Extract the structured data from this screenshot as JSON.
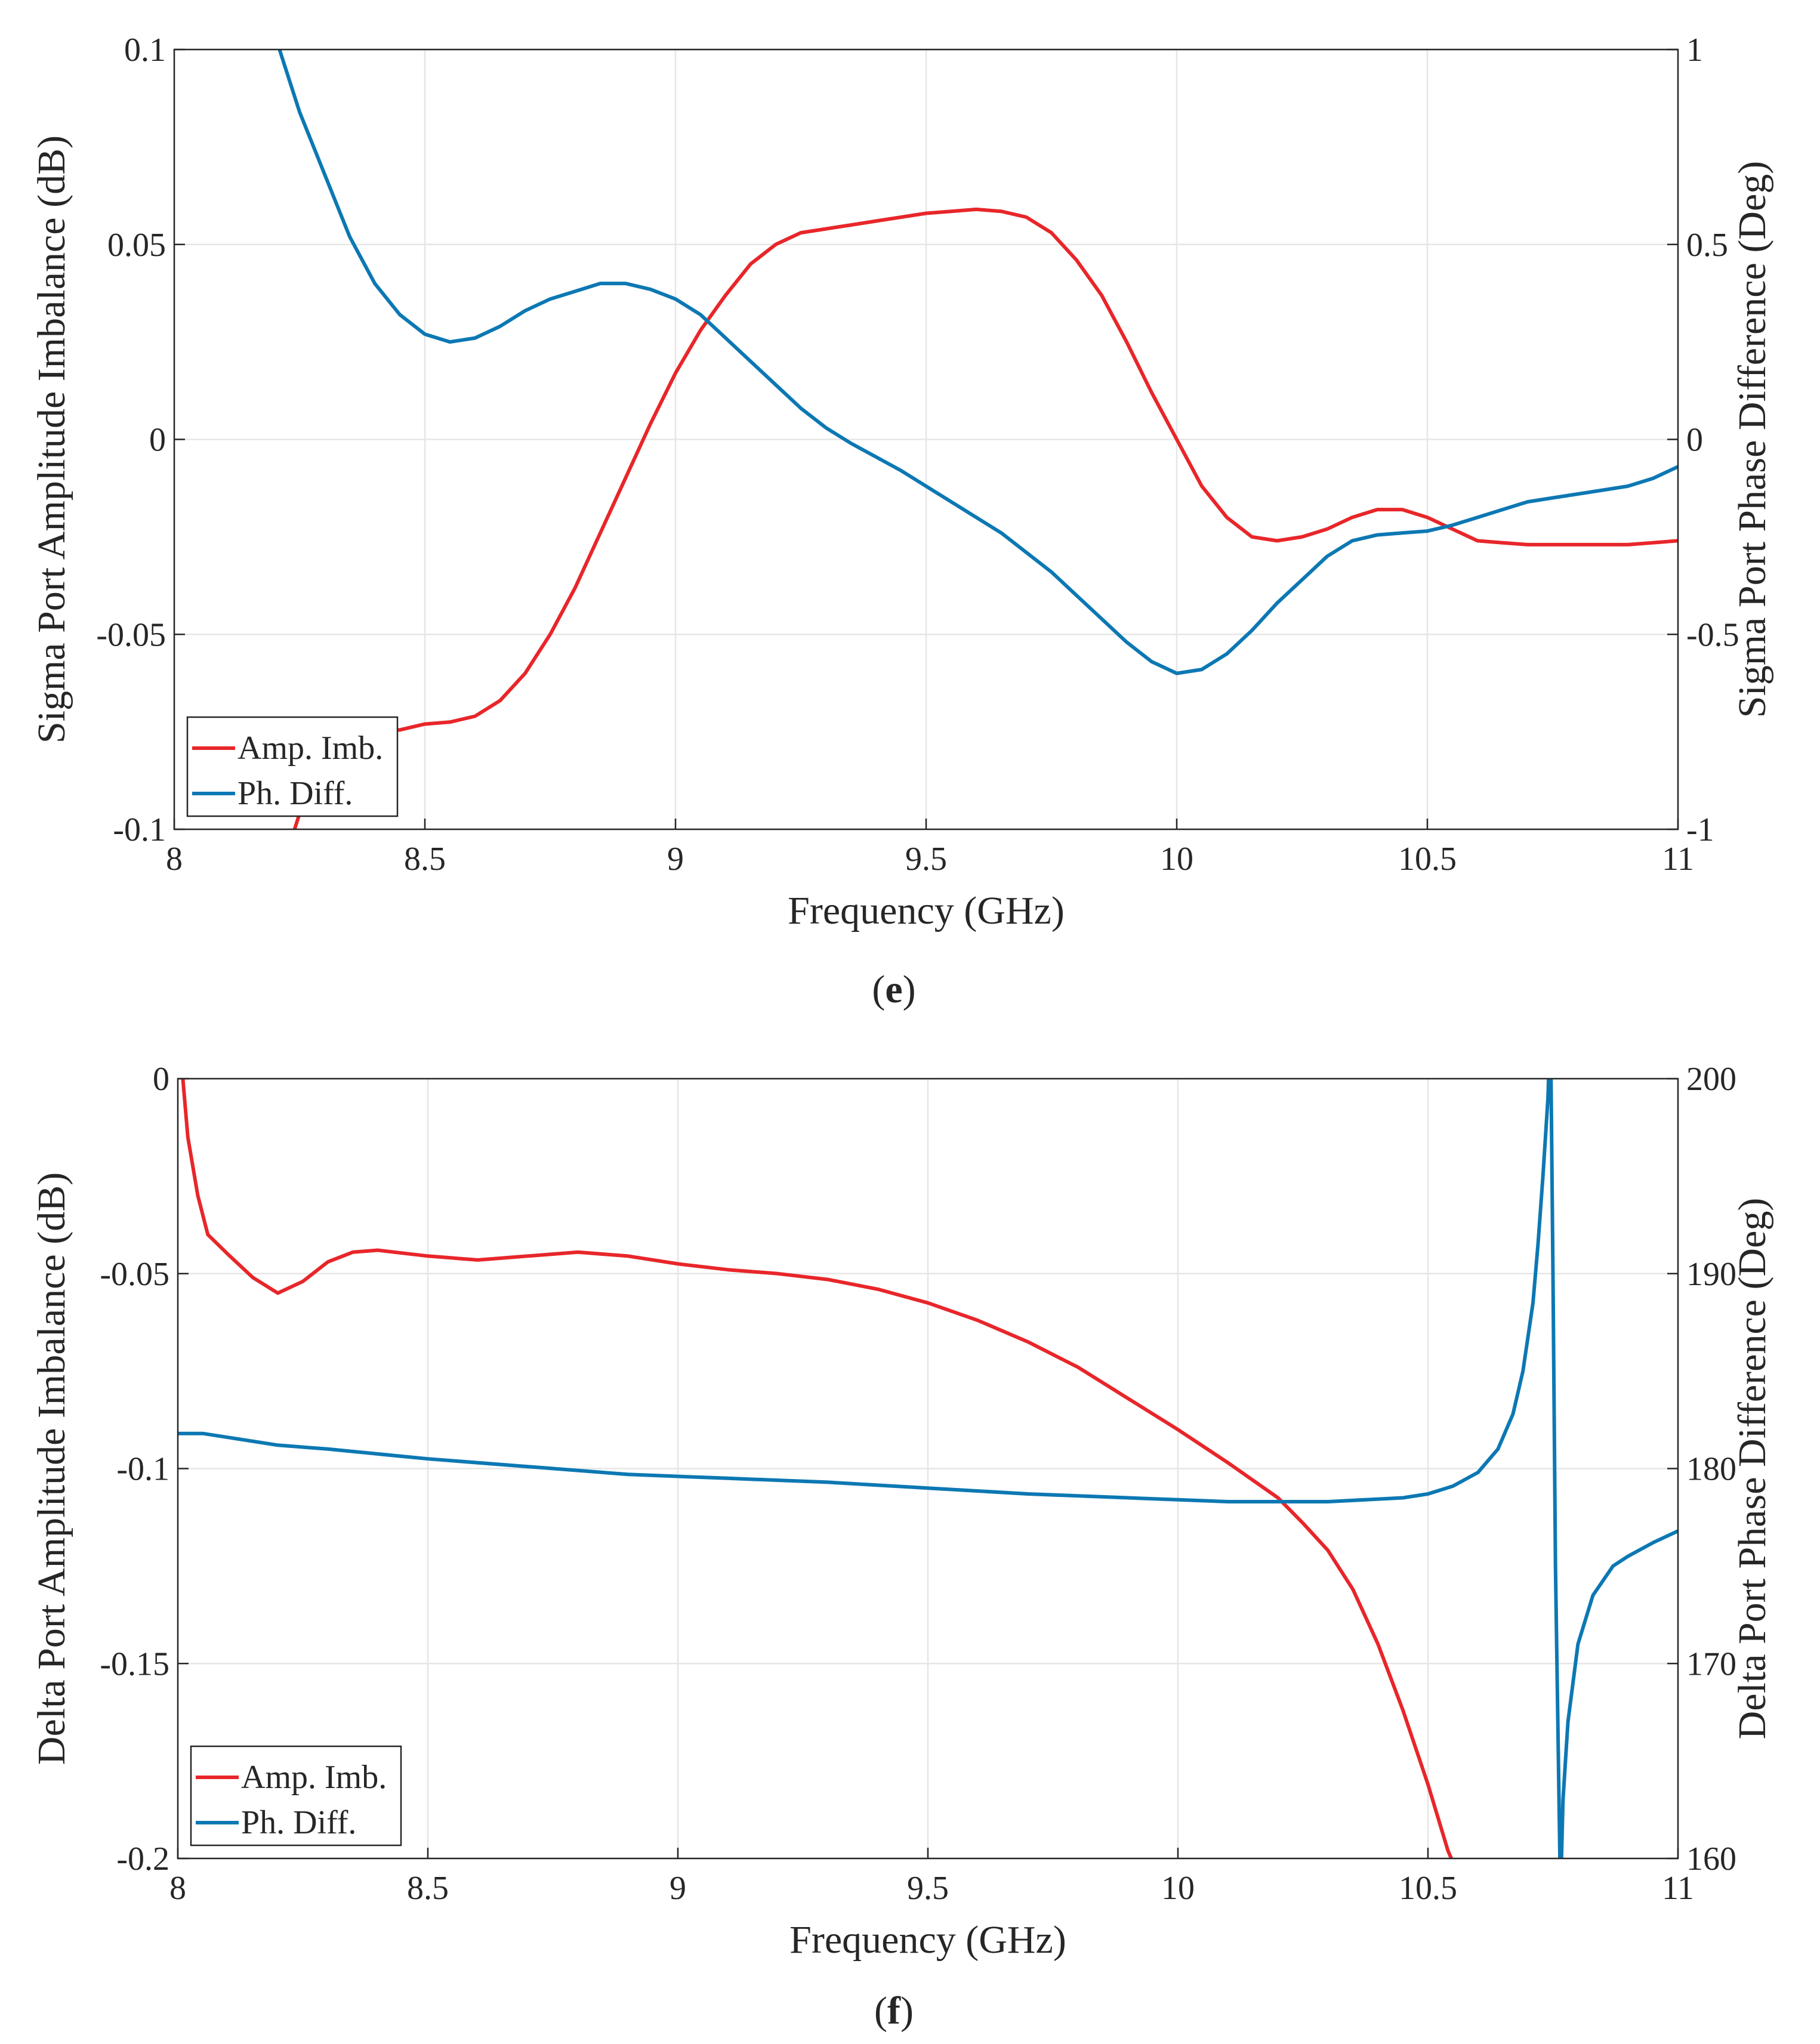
{
  "colors": {
    "amp": "#e8262a",
    "phase": "#0c78b3",
    "grid": "#e6e6e6",
    "axis": "#262626"
  },
  "chart_data": [
    {
      "type": "line",
      "panel": "e",
      "caption": {
        "open": "(",
        "letter": "e",
        "close": ")"
      },
      "xlabel": "Frequency (GHz)",
      "ylabel_left": "Sigma Port Amplitude Imbalance (dB)",
      "ylabel_right": "Sigma Port Phase Difference (Deg)",
      "xlim": [
        8,
        11
      ],
      "ylim_left": [
        -0.1,
        0.1
      ],
      "ylim_right": [
        -1,
        1
      ],
      "xticks": [
        8,
        8.5,
        9,
        9.5,
        10,
        10.5,
        11
      ],
      "xtick_labels": [
        "8",
        "8.5",
        "9",
        "9.5",
        "10",
        "10.5",
        "11"
      ],
      "yticks_left": [
        -0.1,
        -0.05,
        0,
        0.05,
        0.1
      ],
      "ytick_labels_left": [
        "-0.1",
        "-0.05",
        "0",
        "0.05",
        "0.1"
      ],
      "yticks_right": [
        -1,
        -0.5,
        0,
        0.5,
        1
      ],
      "ytick_labels_right": [
        "-1",
        "-0.5",
        "0",
        "0.5",
        "1"
      ],
      "legend_position": "bottom-left",
      "series": [
        {
          "name": "Amp. Imb.",
          "axis": "left",
          "color_key": "amp",
          "x": [
            8.24,
            8.26,
            8.3,
            8.35,
            8.4,
            8.45,
            8.5,
            8.55,
            8.6,
            8.65,
            8.7,
            8.75,
            8.8,
            8.85,
            8.9,
            8.95,
            9.0,
            9.05,
            9.1,
            9.15,
            9.2,
            9.25,
            9.3,
            9.35,
            9.4,
            9.45,
            9.5,
            9.55,
            9.6,
            9.65,
            9.7,
            9.75,
            9.8,
            9.85,
            9.9,
            9.95,
            10.0,
            10.05,
            10.1,
            10.15,
            10.2,
            10.25,
            10.3,
            10.35,
            10.4,
            10.45,
            10.5,
            10.55,
            10.6,
            10.65,
            10.7,
            10.8,
            10.9,
            11.0
          ],
          "y": [
            -0.1,
            -0.092,
            -0.082,
            -0.077,
            -0.075,
            -0.0745,
            -0.073,
            -0.0725,
            -0.071,
            -0.067,
            -0.06,
            -0.05,
            -0.038,
            -0.024,
            -0.01,
            0.004,
            0.017,
            0.028,
            0.037,
            0.045,
            0.05,
            0.053,
            0.054,
            0.055,
            0.056,
            0.057,
            0.058,
            0.0585,
            0.059,
            0.0585,
            0.057,
            0.053,
            0.046,
            0.037,
            0.025,
            0.012,
            0.0,
            -0.012,
            -0.02,
            -0.025,
            -0.026,
            -0.025,
            -0.023,
            -0.02,
            -0.018,
            -0.018,
            -0.02,
            -0.023,
            -0.026,
            -0.0265,
            -0.027,
            -0.027,
            -0.027,
            -0.026
          ]
        },
        {
          "name": "Ph. Diff.",
          "axis": "right",
          "color_key": "phase",
          "x": [
            8.21,
            8.25,
            8.3,
            8.35,
            8.4,
            8.45,
            8.5,
            8.55,
            8.6,
            8.65,
            8.7,
            8.75,
            8.8,
            8.85,
            8.9,
            8.95,
            9.0,
            9.05,
            9.1,
            9.15,
            9.2,
            9.25,
            9.3,
            9.35,
            9.4,
            9.45,
            9.5,
            9.55,
            9.6,
            9.65,
            9.7,
            9.75,
            9.8,
            9.85,
            9.9,
            9.95,
            10.0,
            10.05,
            10.1,
            10.15,
            10.2,
            10.25,
            10.3,
            10.35,
            10.4,
            10.45,
            10.5,
            10.55,
            10.6,
            10.65,
            10.7,
            10.75,
            10.8,
            10.85,
            10.9,
            10.95,
            11.0
          ],
          "y": [
            1.0,
            0.84,
            0.68,
            0.52,
            0.4,
            0.32,
            0.27,
            0.25,
            0.26,
            0.29,
            0.33,
            0.36,
            0.38,
            0.4,
            0.4,
            0.385,
            0.36,
            0.32,
            0.26,
            0.2,
            0.14,
            0.08,
            0.03,
            -0.01,
            -0.045,
            -0.08,
            -0.12,
            -0.16,
            -0.2,
            -0.24,
            -0.29,
            -0.34,
            -0.4,
            -0.46,
            -0.52,
            -0.57,
            -0.6,
            -0.59,
            -0.55,
            -0.49,
            -0.42,
            -0.36,
            -0.3,
            -0.26,
            -0.245,
            -0.24,
            -0.235,
            -0.22,
            -0.2,
            -0.18,
            -0.16,
            -0.15,
            -0.14,
            -0.13,
            -0.12,
            -0.1,
            -0.07
          ]
        }
      ]
    },
    {
      "type": "line",
      "panel": "f",
      "caption": {
        "open": "(",
        "letter": "f",
        "close": ")"
      },
      "xlabel": "Frequency (GHz)",
      "ylabel_left": "Delta Port Amplitude Imbalance (dB)",
      "ylabel_right": "Delta Port Phase Difference (Deg)",
      "xlim": [
        8,
        11
      ],
      "ylim_left": [
        -0.2,
        0
      ],
      "ylim_right": [
        160,
        200
      ],
      "xticks": [
        8,
        8.5,
        9,
        9.5,
        10,
        10.5,
        11
      ],
      "xtick_labels": [
        "8",
        "8.5",
        "9",
        "9.5",
        "10",
        "10.5",
        "11"
      ],
      "yticks_left": [
        -0.2,
        -0.15,
        -0.1,
        -0.05,
        0
      ],
      "ytick_labels_left": [
        "-0.2",
        "-0.15",
        "-0.1",
        "-0.05",
        "0"
      ],
      "yticks_right": [
        160,
        170,
        180,
        190,
        200
      ],
      "ytick_labels_right": [
        "160",
        "170",
        "180",
        "190",
        "200"
      ],
      "legend_position": "bottom-left",
      "series": [
        {
          "name": "Amp. Imb.",
          "axis": "left",
          "color_key": "amp",
          "x": [
            8.01,
            8.02,
            8.04,
            8.06,
            8.1,
            8.15,
            8.2,
            8.25,
            8.3,
            8.35,
            8.4,
            8.5,
            8.6,
            8.7,
            8.8,
            8.9,
            9.0,
            9.1,
            9.2,
            9.3,
            9.4,
            9.5,
            9.6,
            9.7,
            9.8,
            9.9,
            10.0,
            10.1,
            10.2,
            10.25,
            10.3,
            10.35,
            10.4,
            10.45,
            10.5,
            10.54,
            10.56
          ],
          "y": [
            0.0,
            -0.015,
            -0.03,
            -0.04,
            -0.045,
            -0.051,
            -0.055,
            -0.052,
            -0.047,
            -0.0445,
            -0.044,
            -0.0455,
            -0.0465,
            -0.0455,
            -0.0445,
            -0.0455,
            -0.0475,
            -0.049,
            -0.05,
            -0.0515,
            -0.054,
            -0.0575,
            -0.062,
            -0.0675,
            -0.074,
            -0.082,
            -0.09,
            -0.0985,
            -0.1075,
            -0.114,
            -0.121,
            -0.131,
            -0.145,
            -0.162,
            -0.181,
            -0.198,
            -0.204
          ]
        },
        {
          "name": "Ph. Diff.",
          "axis": "right",
          "color_key": "phase",
          "x": [
            8.0,
            8.05,
            8.1,
            8.2,
            8.3,
            8.5,
            8.7,
            8.9,
            9.1,
            9.3,
            9.5,
            9.7,
            9.9,
            10.1,
            10.3,
            10.45,
            10.5,
            10.55,
            10.6,
            10.64,
            10.67,
            10.69,
            10.71,
            10.72,
            10.73,
            10.74,
            10.745,
            null,
            10.745,
            10.75,
            10.755,
            10.765,
            10.77,
            10.78,
            10.8,
            10.83,
            10.87,
            10.9,
            10.95,
            11.0
          ],
          "y": [
            181.8,
            181.8,
            181.6,
            181.2,
            181.0,
            180.5,
            180.1,
            179.7,
            179.5,
            179.3,
            179.0,
            178.7,
            178.5,
            178.3,
            178.3,
            178.5,
            178.7,
            179.1,
            179.8,
            181.0,
            182.8,
            185.0,
            188.5,
            191.5,
            195.0,
            199.0,
            203.0,
            null,
            203.0,
            190.0,
            175.0,
            158.0,
            163.0,
            167.0,
            171.0,
            173.5,
            175.0,
            175.5,
            176.2,
            176.8
          ]
        }
      ]
    }
  ]
}
